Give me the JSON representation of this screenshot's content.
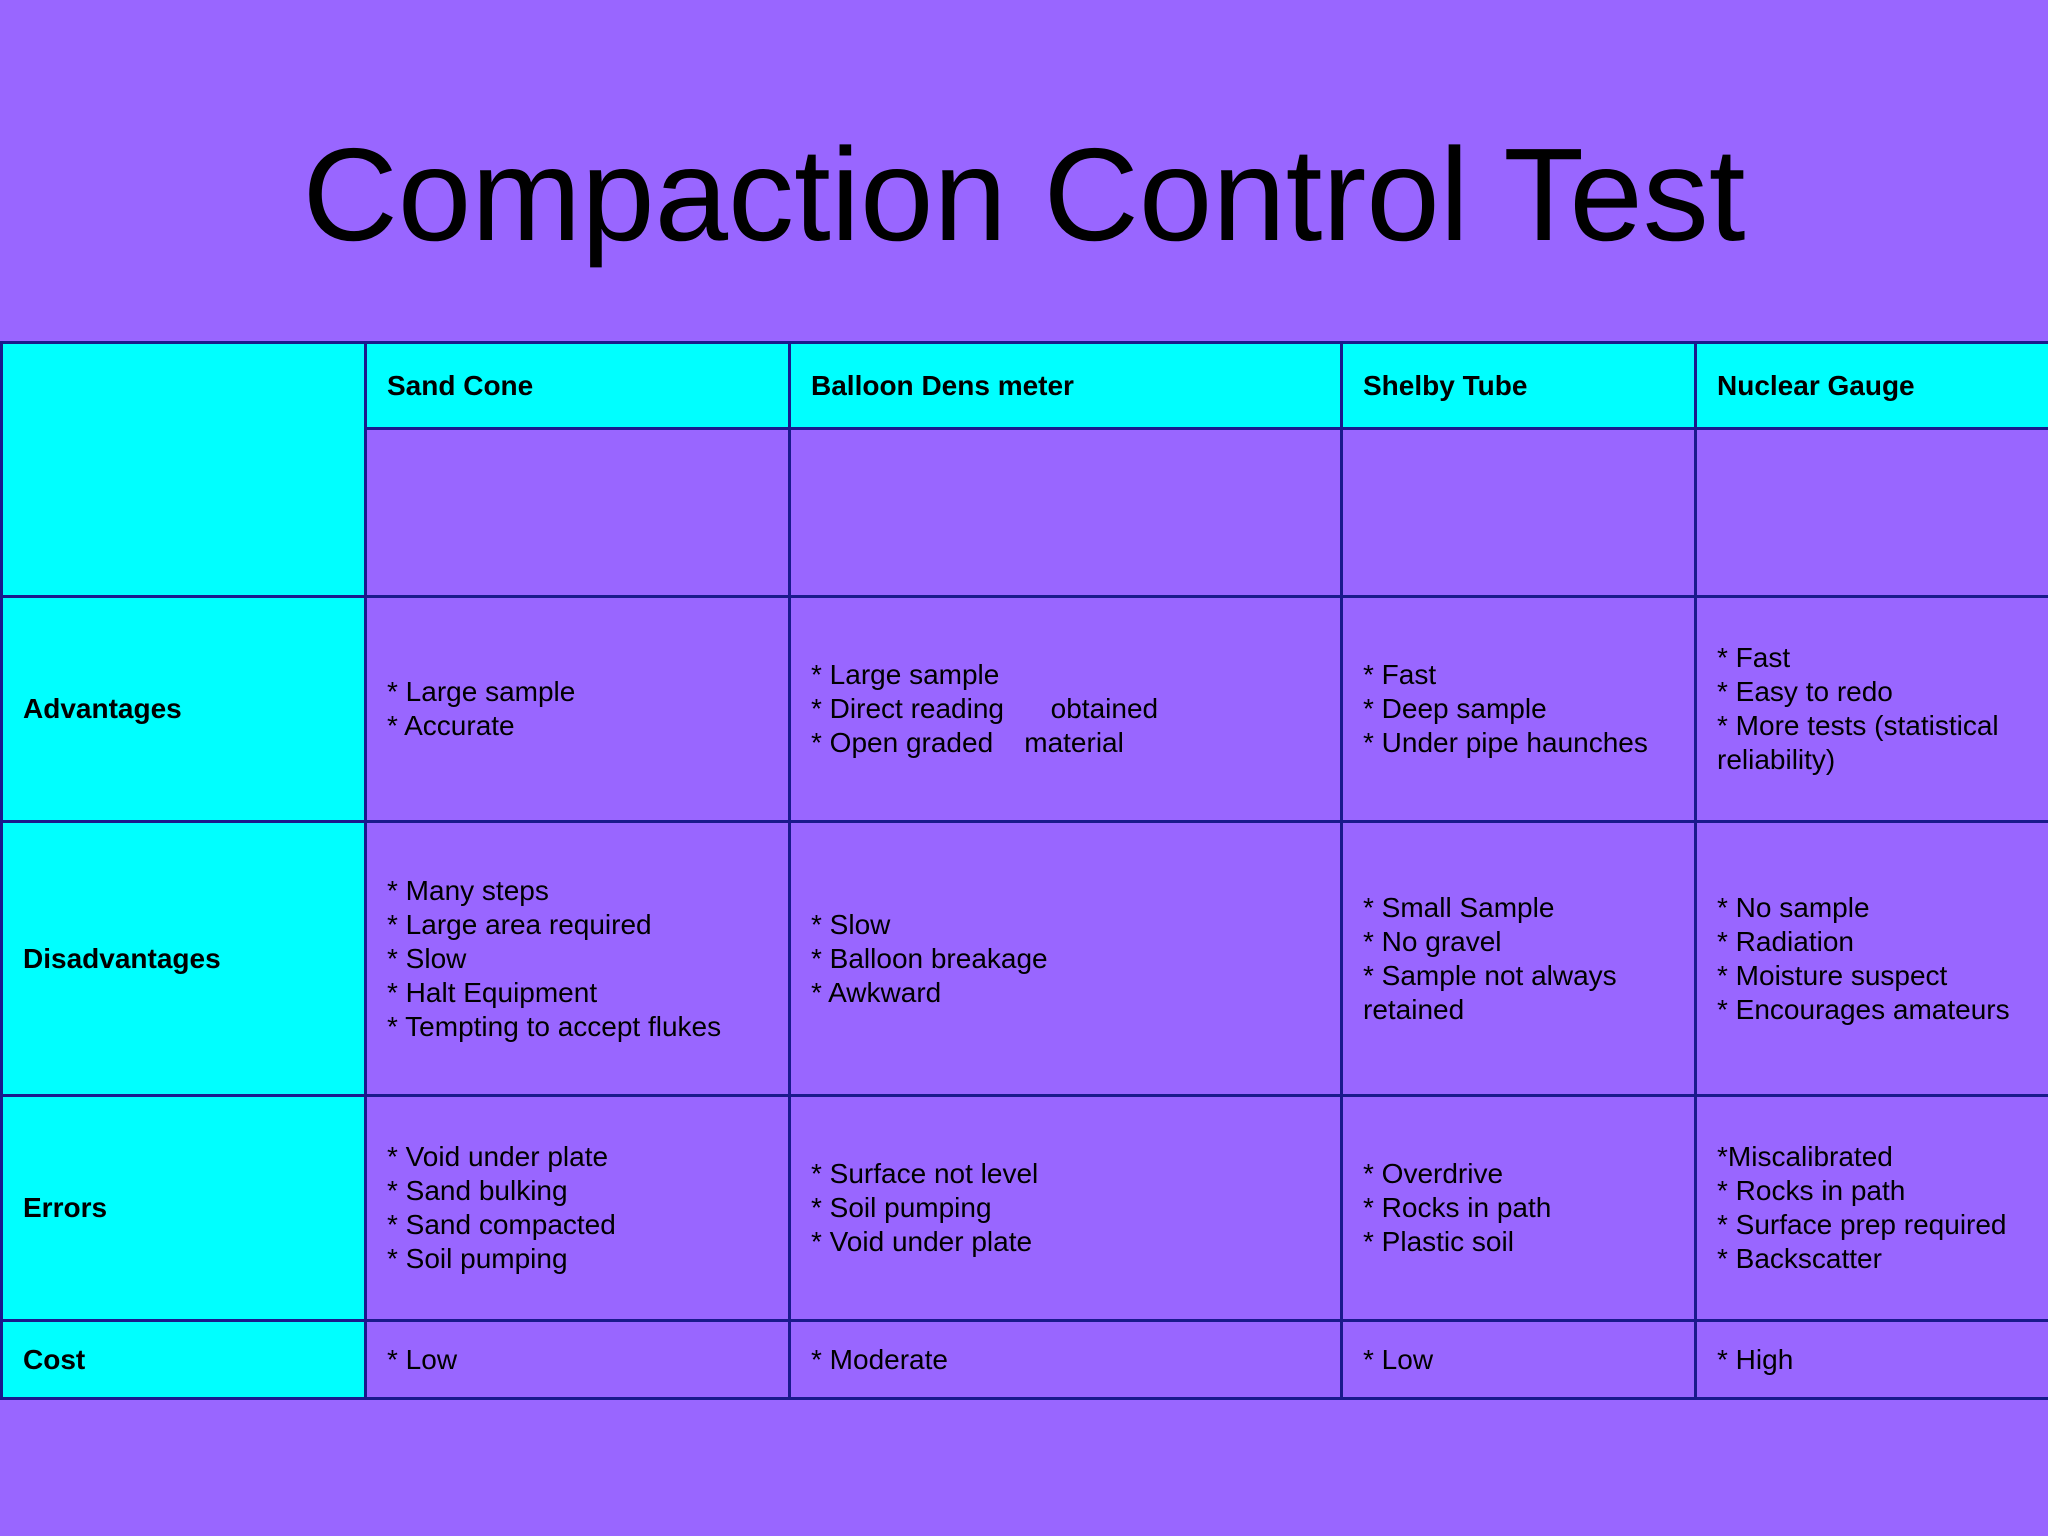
{
  "slide": {
    "title": "Compaction Control Test"
  },
  "table": {
    "columns": [
      "Sand Cone",
      "Balloon Dens meter",
      "Shelby Tube",
      "Nuclear Gauge"
    ],
    "rows": [
      {
        "label": "Advantages",
        "cells": [
          [
            "* Large sample",
            "* Accurate"
          ],
          [
            "* Large sample",
            "* Direct reading      obtained",
            "* Open graded    material"
          ],
          [
            "* Fast",
            "* Deep sample",
            "* Under pipe haunches"
          ],
          [
            "* Fast",
            "* Easy to redo",
            "* More tests (statistical reliability)"
          ]
        ]
      },
      {
        "label": "Disadvantages",
        "cells": [
          [
            "* Many steps",
            "* Large area required",
            "* Slow",
            "* Halt Equipment",
            "* Tempting to accept flukes"
          ],
          [
            "* Slow",
            "* Balloon breakage",
            "* Awkward"
          ],
          [
            "* Small Sample",
            "* No gravel",
            "* Sample not always retained"
          ],
          [
            "* No sample",
            "* Radiation",
            "* Moisture suspect",
            "* Encourages amateurs"
          ]
        ]
      },
      {
        "label": "Errors",
        "cells": [
          [
            "* Void under plate",
            "* Sand bulking",
            "* Sand compacted",
            "* Soil pumping"
          ],
          [
            "* Surface not level",
            "* Soil pumping",
            "* Void under plate"
          ],
          [
            "* Overdrive",
            "* Rocks in path",
            "* Plastic soil"
          ],
          [
            "*Miscalibrated",
            "* Rocks in path",
            "* Surface prep required",
            "* Backscatter"
          ]
        ]
      },
      {
        "label": "Cost",
        "cells": [
          [
            "* Low"
          ],
          [
            "* Moderate"
          ],
          [
            "* Low"
          ],
          [
            "* High"
          ]
        ]
      }
    ]
  },
  "colors": {
    "background": "#9966ff",
    "header_fill": "#00ffff",
    "border": "#1a1a8c"
  }
}
